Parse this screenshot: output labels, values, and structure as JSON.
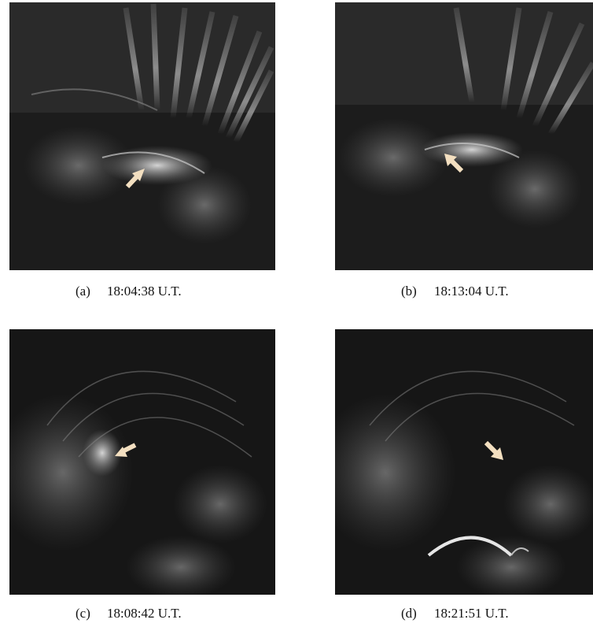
{
  "panels": [
    {
      "label": "(a)",
      "time": "18:04:38 U.T."
    },
    {
      "label": "(b)",
      "time": "18:13:04 U.T."
    },
    {
      "label": "(c)",
      "time": "18:08:42 U.T."
    },
    {
      "label": "(d)",
      "time": "18:21:51 U.T."
    }
  ]
}
